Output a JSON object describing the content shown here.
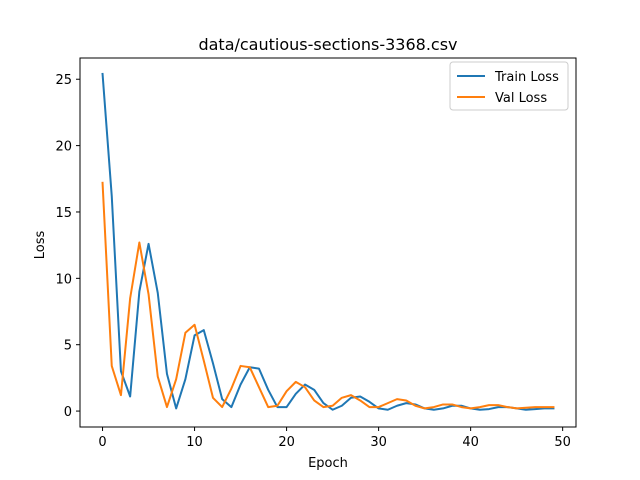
{
  "chart_data": {
    "type": "line",
    "title": "data/cautious-sections-3368.csv",
    "xlabel": "Epoch",
    "ylabel": "Loss",
    "xlim": [
      -2.45,
      51.45
    ],
    "ylim": [
      -1.2,
      26.6
    ],
    "xticks": [
      0,
      10,
      20,
      30,
      40,
      50
    ],
    "yticks": [
      0,
      5,
      10,
      15,
      20,
      25
    ],
    "grid": false,
    "legend_position": "top-right",
    "x": [
      0,
      1,
      2,
      3,
      4,
      5,
      6,
      7,
      8,
      9,
      10,
      11,
      12,
      13,
      14,
      15,
      16,
      17,
      18,
      19,
      20,
      21,
      22,
      23,
      24,
      25,
      26,
      27,
      28,
      29,
      30,
      31,
      32,
      33,
      34,
      35,
      36,
      37,
      38,
      39,
      40,
      41,
      42,
      43,
      44,
      45,
      46,
      47,
      48,
      49
    ],
    "series": [
      {
        "name": "Train Loss",
        "color": "#1f77b4",
        "values": [
          25.4,
          16.2,
          3.0,
          1.1,
          9.0,
          12.6,
          8.9,
          2.8,
          0.2,
          2.4,
          5.7,
          6.1,
          3.6,
          0.9,
          0.3,
          2.0,
          3.3,
          3.2,
          1.6,
          0.3,
          0.3,
          1.3,
          2.0,
          1.6,
          0.6,
          0.1,
          0.4,
          1.0,
          1.1,
          0.7,
          0.2,
          0.1,
          0.4,
          0.6,
          0.5,
          0.2,
          0.1,
          0.2,
          0.4,
          0.4,
          0.2,
          0.1,
          0.15,
          0.3,
          0.3,
          0.2,
          0.1,
          0.15,
          0.2,
          0.2
        ]
      },
      {
        "name": "Val Loss",
        "color": "#ff7f0e",
        "values": [
          17.2,
          3.4,
          1.2,
          8.5,
          12.7,
          8.8,
          2.6,
          0.3,
          2.4,
          5.9,
          6.5,
          3.8,
          1.0,
          0.3,
          1.7,
          3.4,
          3.3,
          1.8,
          0.3,
          0.4,
          1.5,
          2.2,
          1.8,
          0.8,
          0.3,
          0.4,
          1.0,
          1.2,
          0.8,
          0.3,
          0.3,
          0.6,
          0.9,
          0.8,
          0.4,
          0.2,
          0.3,
          0.5,
          0.5,
          0.3,
          0.2,
          0.3,
          0.45,
          0.45,
          0.3,
          0.2,
          0.25,
          0.3,
          0.3,
          0.3
        ]
      }
    ]
  }
}
